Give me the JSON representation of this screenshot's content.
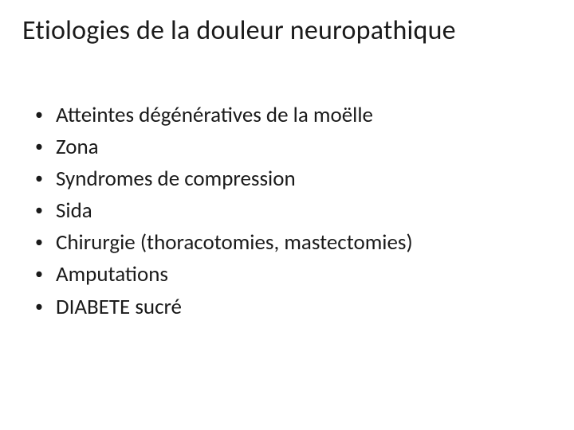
{
  "slide": {
    "title": "Etiologies de la douleur neuropathique",
    "title_color": "#1a1a1a",
    "title_fontsize": 34,
    "background_color": "#ffffff",
    "bullets": [
      {
        "text": "Atteintes dégénératives de la moëlle"
      },
      {
        "text": "Zona"
      },
      {
        "text": "Syndromes de compression"
      },
      {
        "text": "Sida"
      },
      {
        "text": "Chirurgie (thoracotomies, mastectomies)"
      },
      {
        "text": "Amputations"
      },
      {
        "text": "DIABETE sucré"
      }
    ],
    "bullet_color": "#1a1a1a",
    "bullet_fontsize": 27,
    "bullet_marker": "•"
  }
}
